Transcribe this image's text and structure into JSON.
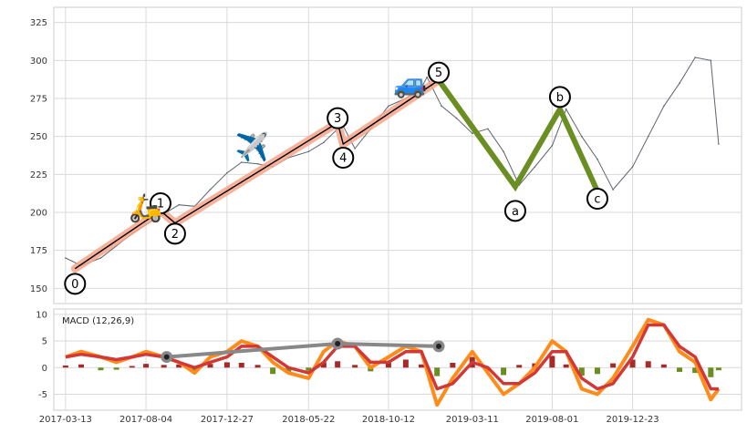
{
  "chart_data": [
    {
      "type": "line",
      "name": "price-panel",
      "title": "",
      "xlabel": "",
      "ylabel": "",
      "ylim": [
        140,
        335
      ],
      "yticks": [
        150,
        175,
        200,
        225,
        250,
        275,
        300,
        325
      ],
      "grid": true,
      "price_series": {
        "x": [
          "2017-03-13",
          "2017-04-10",
          "2017-05-15",
          "2017-06-12",
          "2017-07-10",
          "2017-08-04",
          "2017-09-05",
          "2017-10-02",
          "2017-10-30",
          "2017-11-27",
          "2017-12-27",
          "2018-01-22",
          "2018-02-20",
          "2018-03-19",
          "2018-04-16",
          "2018-05-22",
          "2018-06-18",
          "2018-07-13",
          "2018-07-20",
          "2018-08-13",
          "2018-09-10",
          "2018-10-12",
          "2018-11-12",
          "2018-12-10",
          "2018-12-20",
          "2019-01-15",
          "2019-02-11",
          "2019-03-11",
          "2019-04-08",
          "2019-05-06",
          "2019-06-03",
          "2019-07-01",
          "2019-08-01",
          "2019-08-26",
          "2019-09-23",
          "2019-10-21",
          "2019-11-18",
          "2019-12-23",
          "2020-01-20",
          "2020-02-17",
          "2020-03-16",
          "2020-04-13",
          "2020-05-11",
          "2020-05-25"
        ],
        "y": [
          170,
          165,
          170,
          178,
          186,
          192,
          199,
          205,
          204,
          215,
          226,
          233,
          232,
          230,
          236,
          240,
          246,
          255,
          259,
          242,
          255,
          270,
          275,
          282,
          289,
          270,
          262,
          252,
          255,
          240,
          218,
          230,
          244,
          268,
          250,
          235,
          215,
          230,
          250,
          270,
          285,
          302,
          300,
          245
        ]
      },
      "waves": {
        "impulse": {
          "labels": [
            "0",
            "1",
            "2",
            "3",
            "4",
            "5"
          ],
          "x": [
            "2017-03-30",
            "2017-08-30",
            "2017-09-25",
            "2018-07-13",
            "2018-07-23",
            "2019-01-10"
          ],
          "y": [
            163,
            201,
            193,
            259,
            245,
            287
          ],
          "color": "#f4a58a"
        },
        "correction": {
          "labels": [
            "a",
            "b",
            "c"
          ],
          "x": [
            "2019-01-10",
            "2019-05-27",
            "2019-08-15",
            "2019-10-21"
          ],
          "y": [
            287,
            217,
            268,
            214
          ],
          "color": "#6b8e23"
        }
      },
      "wave_label_positions": [
        {
          "label": "0",
          "x": "2017-03-30",
          "y": 153
        },
        {
          "label": "1",
          "x": "2017-08-30",
          "y": 206
        },
        {
          "label": "2",
          "x": "2017-09-25",
          "y": 186
        },
        {
          "label": "3",
          "x": "2018-07-13",
          "y": 262
        },
        {
          "label": "4",
          "x": "2018-07-23",
          "y": 236
        },
        {
          "label": "5",
          "x": "2019-01-10",
          "y": 292
        },
        {
          "label": "a",
          "x": "2019-05-27",
          "y": 201
        },
        {
          "label": "b",
          "x": "2019-08-15",
          "y": 276
        },
        {
          "label": "c",
          "x": "2019-10-21",
          "y": 209
        }
      ],
      "emoji_markers": [
        {
          "icon": "scooter-icon",
          "glyph": "🛵",
          "x": "2017-08-04",
          "y": 203
        },
        {
          "icon": "airplane-icon",
          "glyph": "✈️",
          "x": "2018-02-10",
          "y": 243
        },
        {
          "icon": "car-icon",
          "glyph": "🚙",
          "x": "2018-11-20",
          "y": 285
        }
      ],
      "colors": {
        "price": "#5d6570",
        "impulse_line": "#000000",
        "impulse_band": "#f4a58a",
        "correction": "#6b8e23"
      }
    },
    {
      "type": "line",
      "name": "macd-panel",
      "legend_text": "MACD (12,26,9)",
      "ylim": [
        -8,
        11
      ],
      "yticks": [
        -5,
        0,
        5,
        10
      ],
      "grid": true,
      "x_tick_labels": [
        "2017-03-13",
        "2017-08-04",
        "2017-12-27",
        "2018-05-22",
        "2018-10-12",
        "2019-03-11",
        "2019-08-01",
        "2019-12-23"
      ],
      "x_range": [
        "2017-02-20",
        "2020-07-05"
      ],
      "macd": {
        "x": [
          "2017-03-13",
          "2017-04-10",
          "2017-05-15",
          "2017-06-12",
          "2017-07-10",
          "2017-08-04",
          "2017-09-05",
          "2017-10-02",
          "2017-10-30",
          "2017-11-27",
          "2017-12-27",
          "2018-01-22",
          "2018-02-20",
          "2018-03-19",
          "2018-04-16",
          "2018-05-22",
          "2018-06-18",
          "2018-07-13",
          "2018-08-13",
          "2018-09-10",
          "2018-10-12",
          "2018-11-12",
          "2018-12-10",
          "2019-01-07",
          "2019-02-04",
          "2019-03-11",
          "2019-04-08",
          "2019-05-06",
          "2019-06-03",
          "2019-07-01",
          "2019-08-01",
          "2019-08-26",
          "2019-09-23",
          "2019-10-21",
          "2019-11-18",
          "2019-12-23",
          "2020-01-20",
          "2020-02-17",
          "2020-03-16",
          "2020-04-13",
          "2020-05-11",
          "2020-05-25"
        ],
        "line": [
          2,
          3,
          2,
          1,
          2,
          3,
          2,
          1,
          -1,
          2,
          3,
          5,
          4,
          1,
          -1,
          -2,
          3,
          5,
          4,
          0,
          2,
          4,
          3,
          -7,
          -2,
          3,
          -1,
          -5,
          -3,
          0,
          5,
          3,
          -4,
          -5,
          -2,
          4,
          9,
          8,
          3,
          1,
          -6,
          -4
        ],
        "signal": [
          2,
          2.5,
          2,
          1.5,
          2,
          2.5,
          2,
          1,
          0,
          1,
          2,
          4,
          4,
          2,
          0,
          -1,
          1,
          4,
          4,
          1,
          1,
          3,
          3,
          -4,
          -3,
          1,
          0,
          -3,
          -3,
          -1,
          3,
          3,
          -2,
          -4,
          -3,
          2,
          8,
          8,
          4,
          2,
          -4,
          -4
        ]
      },
      "histogram": {
        "x": [
          "2017-03-13",
          "2017-04-10",
          "2017-05-15",
          "2017-06-12",
          "2017-07-10",
          "2017-08-04",
          "2017-09-05",
          "2017-10-02",
          "2017-10-30",
          "2017-11-27",
          "2017-12-27",
          "2018-01-22",
          "2018-02-20",
          "2018-03-19",
          "2018-04-16",
          "2018-05-22",
          "2018-06-18",
          "2018-07-13",
          "2018-08-13",
          "2018-09-10",
          "2018-10-12",
          "2018-11-12",
          "2018-12-10",
          "2019-01-07",
          "2019-02-04",
          "2019-03-11",
          "2019-04-08",
          "2019-05-06",
          "2019-06-03",
          "2019-07-01",
          "2019-08-01",
          "2019-08-26",
          "2019-09-23",
          "2019-10-21",
          "2019-11-18",
          "2019-12-23",
          "2020-01-20",
          "2020-02-17",
          "2020-03-16",
          "2020-04-13",
          "2020-05-11",
          "2020-05-25"
        ],
        "values": [
          0.4,
          0.6,
          -0.5,
          -0.4,
          0.3,
          0.7,
          0.5,
          0.6,
          -0.8,
          0.7,
          1.0,
          0.9,
          0.5,
          -1.2,
          -1.0,
          -0.6,
          1.0,
          1.2,
          0.5,
          -0.7,
          1.0,
          1.5,
          0.6,
          -1.6,
          0.9,
          2.0,
          -0.6,
          -1.4,
          0.5,
          0.8,
          2.2,
          0.6,
          -1.5,
          -1.2,
          0.8,
          1.5,
          1.2,
          0.6,
          -0.8,
          -1.0,
          -1.8,
          -0.5
        ],
        "pos_color": "#a52a2a",
        "neg_color": "#6b8e23"
      },
      "connector": {
        "x": [
          "2017-09-10",
          "2018-07-13",
          "2019-01-10"
        ],
        "y": [
          2.0,
          4.5,
          4.0
        ],
        "color": "#888888"
      },
      "colors": {
        "macd": "#ff8c1a",
        "signal": "#d13838"
      }
    }
  ]
}
